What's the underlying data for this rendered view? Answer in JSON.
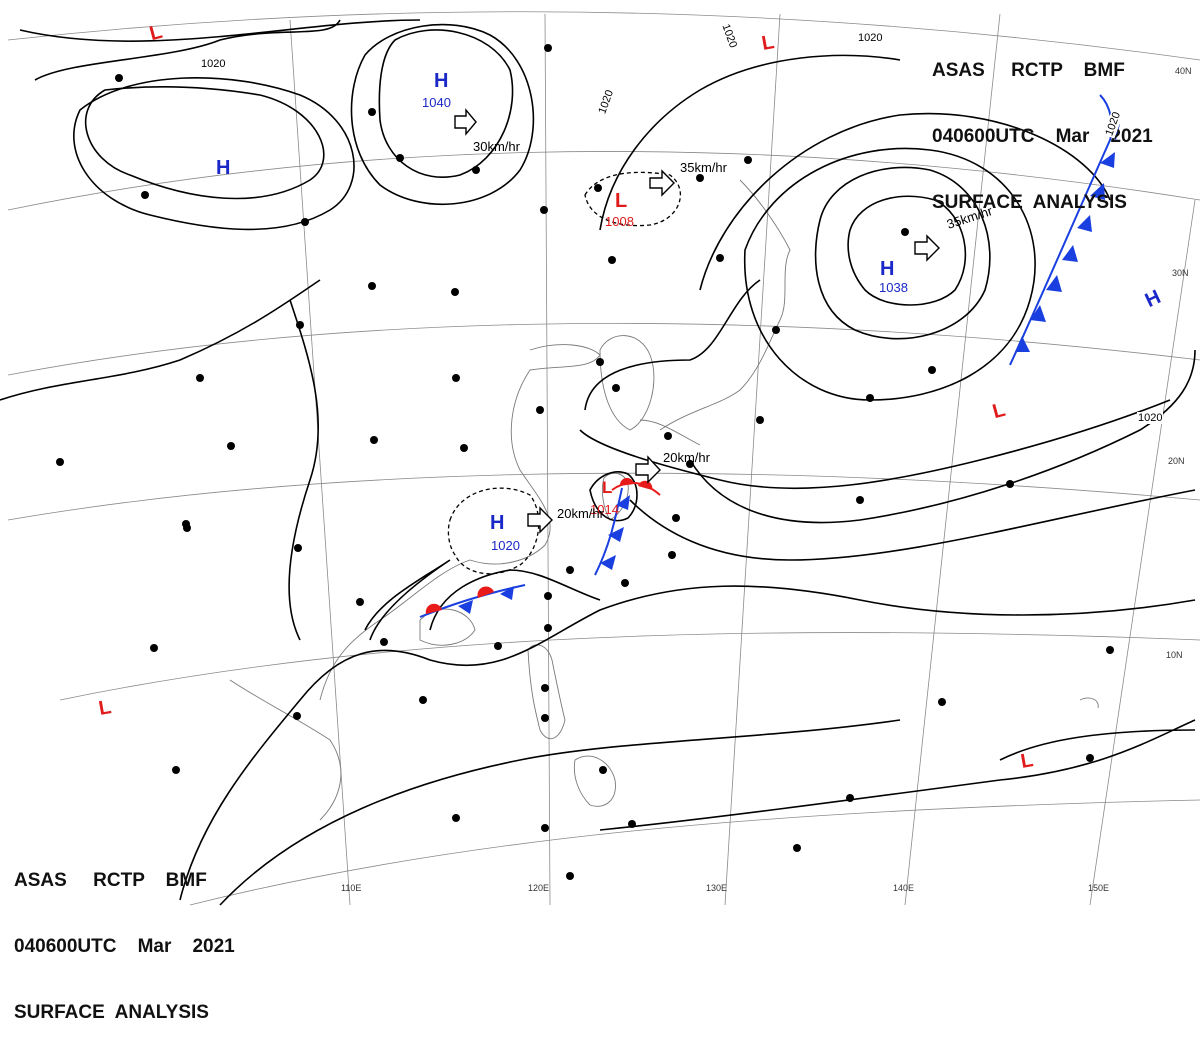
{
  "header": {
    "line1": "ASAS     RCTP    BMF",
    "line2": "040600UTC    Mar    2021",
    "line3": "SURFACE  ANALYSIS"
  },
  "colors": {
    "high": "#1a28c8",
    "low": "#e01b1b",
    "cold_front": "#1a3fe0",
    "warm_front": "#e81a1a",
    "isobar": "#000000",
    "grid": "#8a8a8a",
    "coast": "#7a7a7a"
  },
  "lat_labels": [
    "40N",
    "30N",
    "20N",
    "10N"
  ],
  "lon_labels": [
    "110E",
    "120E",
    "130E",
    "140E",
    "150E"
  ],
  "pressure_systems": [
    {
      "type": "H",
      "value": "1040"
    },
    {
      "type": "H",
      "value": ""
    },
    {
      "type": "L",
      "value": "1008"
    },
    {
      "type": "H",
      "value": "1038"
    },
    {
      "type": "H",
      "value": ""
    },
    {
      "type": "H",
      "value": "1020"
    },
    {
      "type": "L",
      "value": "1014"
    },
    {
      "type": "L",
      "value": ""
    },
    {
      "type": "L",
      "value": ""
    },
    {
      "type": "L",
      "value": ""
    },
    {
      "type": "L",
      "value": ""
    },
    {
      "type": "L",
      "value": ""
    }
  ],
  "movements": [
    {
      "label": "30km/hr"
    },
    {
      "label": "35km/hr"
    },
    {
      "label": "35km/hr"
    },
    {
      "label": "20km/hr"
    },
    {
      "label": "20km/hr"
    }
  ],
  "isobar_labels": [
    "1020",
    "1020",
    "1020",
    "1020",
    "1020",
    "1020"
  ]
}
